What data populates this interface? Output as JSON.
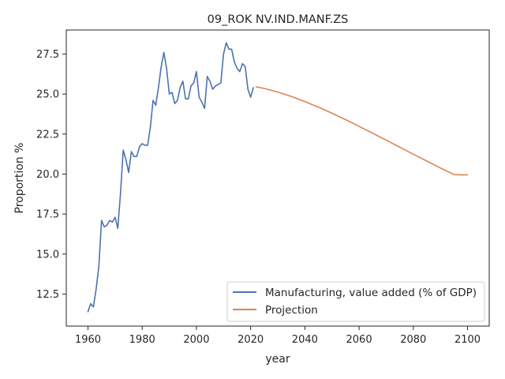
{
  "chart_data": {
    "type": "line",
    "title": "09_ROK NV.IND.MANF.ZS",
    "xlabel": "year",
    "ylabel": "Proportion %",
    "xlim": [
      1952,
      2108
    ],
    "ylim": [
      10.5,
      29.0
    ],
    "xticks": [
      1960,
      1980,
      2000,
      2020,
      2040,
      2060,
      2080,
      2100
    ],
    "yticks": [
      12.5,
      15.0,
      17.5,
      20.0,
      22.5,
      25.0,
      27.5
    ],
    "ytick_labels": [
      "12.5",
      "15.0",
      "17.5",
      "20.0",
      "22.5",
      "25.0",
      "27.5"
    ],
    "grid": false,
    "legend_position": "lower-right",
    "series": [
      {
        "name": "Manufacturing, value added (% of GDP)",
        "color": "#4c72b0",
        "x": [
          1960,
          1961,
          1962,
          1963,
          1964,
          1965,
          1966,
          1967,
          1968,
          1969,
          1970,
          1971,
          1972,
          1973,
          1974,
          1975,
          1976,
          1977,
          1978,
          1979,
          1980,
          1981,
          1982,
          1983,
          1984,
          1985,
          1986,
          1987,
          1988,
          1989,
          1990,
          1991,
          1992,
          1993,
          1994,
          1995,
          1996,
          1997,
          1998,
          1999,
          2000,
          2001,
          2002,
          2003,
          2004,
          2005,
          2006,
          2007,
          2008,
          2009,
          2010,
          2011,
          2012,
          2013,
          2014,
          2015,
          2016,
          2017,
          2018,
          2019,
          2020,
          2021
        ],
        "y": [
          11.4,
          11.9,
          11.7,
          12.8,
          14.2,
          17.1,
          16.7,
          16.8,
          17.1,
          17.0,
          17.3,
          16.6,
          18.8,
          21.5,
          20.9,
          20.1,
          21.4,
          21.1,
          21.1,
          21.7,
          21.9,
          21.8,
          21.8,
          22.9,
          24.6,
          24.3,
          25.4,
          26.7,
          27.6,
          26.6,
          25.0,
          25.1,
          24.4,
          24.6,
          25.4,
          25.8,
          24.7,
          24.7,
          25.5,
          25.7,
          26.4,
          24.8,
          24.5,
          24.1,
          26.1,
          25.8,
          25.3,
          25.5,
          25.6,
          25.7,
          27.5,
          28.2,
          27.8,
          27.8,
          27.0,
          26.6,
          26.4,
          26.9,
          26.7,
          25.3,
          24.8,
          25.4
        ]
      },
      {
        "name": "Projection",
        "color": "#dd8452",
        "x": [
          2022,
          2025,
          2030,
          2035,
          2040,
          2045,
          2050,
          2055,
          2060,
          2065,
          2070,
          2075,
          2080,
          2085,
          2090,
          2095,
          2097,
          2100
        ],
        "y": [
          25.45,
          25.35,
          25.12,
          24.85,
          24.53,
          24.18,
          23.8,
          23.4,
          22.98,
          22.55,
          22.12,
          21.68,
          21.24,
          20.81,
          20.38,
          19.97,
          19.95,
          19.95
        ]
      }
    ]
  }
}
